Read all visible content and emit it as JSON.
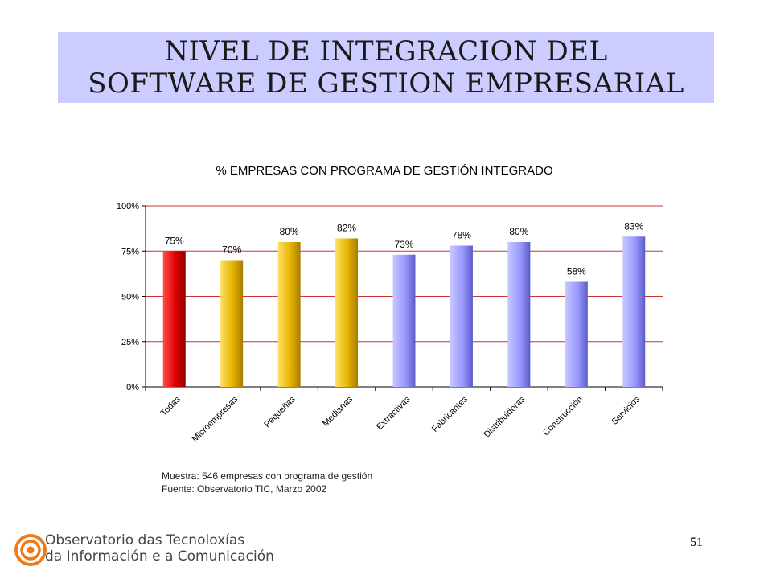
{
  "slide": {
    "title": "NIVEL DE INTEGRACION DEL SOFTWARE DE GESTION EMPRESARIAL",
    "page_number": "51"
  },
  "footnote": {
    "line1": "Muestra: 546 empresas con programa de gestión",
    "line2": "Fuente: Observatorio TIC, Marzo 2002"
  },
  "logo": {
    "line1": "Observatorio das Tecnoloxías",
    "line2": "da Información e a Comunicación",
    "icon": "concentric-circles-icon",
    "color": "#f07a1a"
  },
  "chart_data": {
    "type": "bar",
    "title": "% EMPRESAS CON PROGRAMA DE GESTIÓN INTEGRADO",
    "categories": [
      "Todas",
      "Microempresas",
      "Pequeñas",
      "Medianas",
      "Extractivas",
      "Fabricantes",
      "Distribuidoras",
      "Construcción",
      "Servicios"
    ],
    "values": [
      75,
      70,
      80,
      82,
      73,
      78,
      80,
      58,
      83
    ],
    "labels": [
      "75%",
      "70%",
      "80%",
      "82%",
      "73%",
      "78%",
      "80%",
      "58%",
      "83%"
    ],
    "colors": [
      "#cc0000",
      "#e6b800",
      "#e6b800",
      "#e6b800",
      "#9999ff",
      "#9999ff",
      "#9999ff",
      "#9999ff",
      "#9999ff"
    ],
    "ylim": [
      0,
      100
    ],
    "yticks": [
      "0%",
      "25%",
      "50%",
      "75%",
      "100%"
    ],
    "grid": true,
    "grid_color": "#cc3333"
  }
}
